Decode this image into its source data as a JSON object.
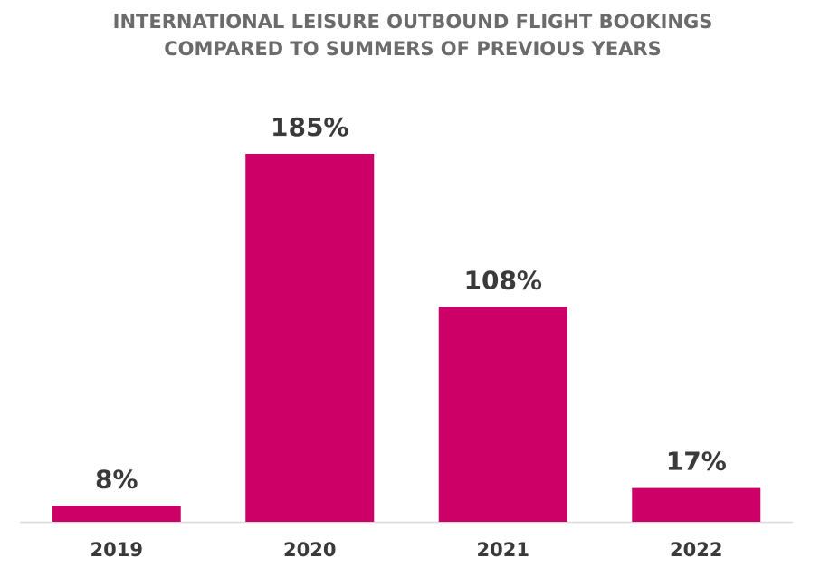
{
  "chart_data": {
    "type": "bar",
    "title": [
      "INTERNATIONAL LEISURE OUTBOUND FLIGHT BOOKINGS",
      "COMPARED TO SUMMERS OF PREVIOUS YEARS"
    ],
    "categories": [
      "2019",
      "2020",
      "2021",
      "2022"
    ],
    "values": [
      8,
      185,
      108,
      17
    ],
    "value_labels": [
      "8%",
      "185%",
      "108%",
      "17%"
    ],
    "color": "#cc0066"
  }
}
